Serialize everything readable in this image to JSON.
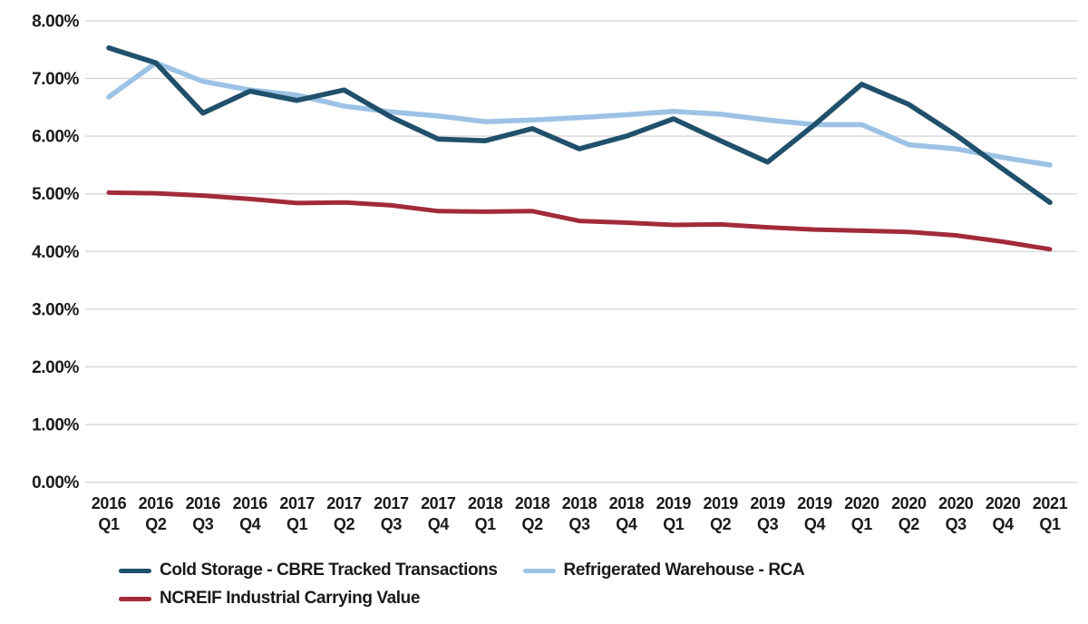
{
  "chart_data": {
    "type": "line",
    "title": "",
    "xlabel": "",
    "ylabel": "",
    "ylim": [
      0,
      8
    ],
    "grid": true,
    "legend_position": "bottom-left",
    "y_ticks": [
      "8.00%",
      "7.00%",
      "6.00%",
      "5.00%",
      "4.00%",
      "3.00%",
      "2.00%",
      "1.00%",
      "0.00%"
    ],
    "categories": [
      "2016 Q1",
      "2016 Q2",
      "2016 Q3",
      "2016 Q4",
      "2017 Q1",
      "2017 Q2",
      "2017 Q3",
      "2017 Q4",
      "2018 Q1",
      "2018 Q2",
      "2018 Q3",
      "2018 Q4",
      "2019 Q1",
      "2019 Q2",
      "2019 Q3",
      "2019 Q4",
      "2020 Q1",
      "2020 Q2",
      "2020 Q3",
      "2020 Q4",
      "2021 Q1"
    ],
    "series": [
      {
        "name": "Cold Storage - CBRE Tracked Transactions",
        "color": "#20506B",
        "values": [
          7.53,
          7.27,
          6.4,
          6.78,
          6.62,
          6.8,
          6.33,
          5.95,
          5.92,
          6.13,
          5.78,
          6.0,
          6.3,
          5.92,
          5.55,
          6.2,
          6.9,
          6.55,
          6.02,
          5.43,
          4.85
        ]
      },
      {
        "name": "Refrigerated Warehouse - RCA",
        "color": "#9CC3E6",
        "values": [
          6.68,
          7.27,
          6.95,
          6.8,
          6.71,
          6.52,
          6.42,
          6.35,
          6.25,
          6.28,
          6.32,
          6.37,
          6.43,
          6.38,
          6.28,
          6.2,
          6.2,
          5.85,
          5.78,
          5.63,
          5.5
        ]
      },
      {
        "name": "NCREIF Industrial Carrying Value",
        "color": "#A22B3A",
        "values": [
          5.02,
          5.01,
          4.97,
          4.91,
          4.84,
          4.85,
          4.8,
          4.7,
          4.69,
          4.7,
          4.53,
          4.5,
          4.46,
          4.47,
          4.42,
          4.38,
          4.36,
          4.34,
          4.28,
          4.17,
          4.04
        ]
      }
    ]
  }
}
